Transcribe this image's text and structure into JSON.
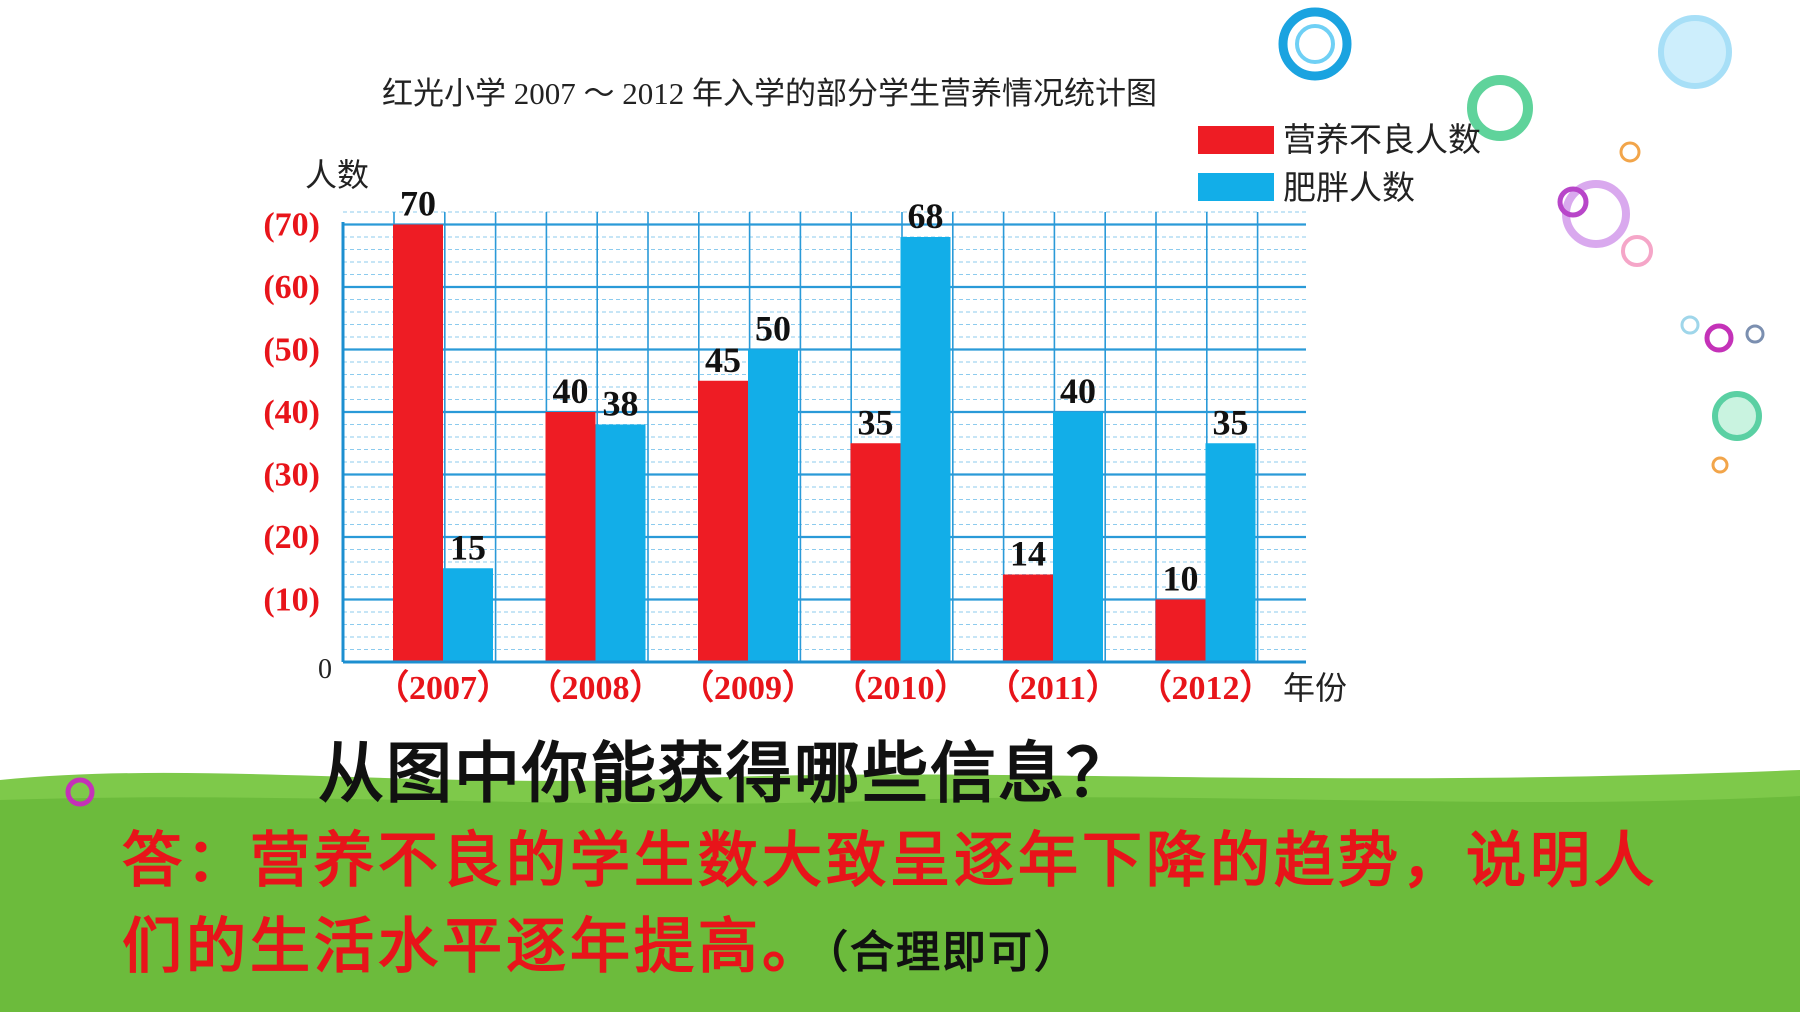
{
  "chart_data": {
    "type": "bar",
    "title": "红光小学 2007 ～ 2012 年入学的部分学生营养情况统计图",
    "ylabel": "人数",
    "xlabel": "年份",
    "origin_label": "0",
    "ylim": [
      0,
      70
    ],
    "y_ticks": [
      "(10)",
      "(20)",
      "(30)",
      "(40)",
      "(50)",
      "(60)",
      "(70)"
    ],
    "categories": [
      "（2007）",
      "（2008）",
      "（2009）",
      "（2010）",
      "（2011）",
      "（2012）"
    ],
    "series": [
      {
        "name": "营养不良人数",
        "color": "#ee1c24",
        "values": [
          70,
          40,
          45,
          35,
          14,
          10
        ]
      },
      {
        "name": "肥胖人数",
        "color": "#12aee8",
        "values": [
          15,
          38,
          50,
          68,
          40,
          35
        ]
      }
    ],
    "grid": true,
    "legend_position": "top-right"
  },
  "question": "从图中你能获得哪些信息？",
  "answer": {
    "text": "答：营养不良的学生数大致呈逐年下降的趋势，说明人们的生活水平逐年提高。",
    "note": "（合理即可）"
  }
}
